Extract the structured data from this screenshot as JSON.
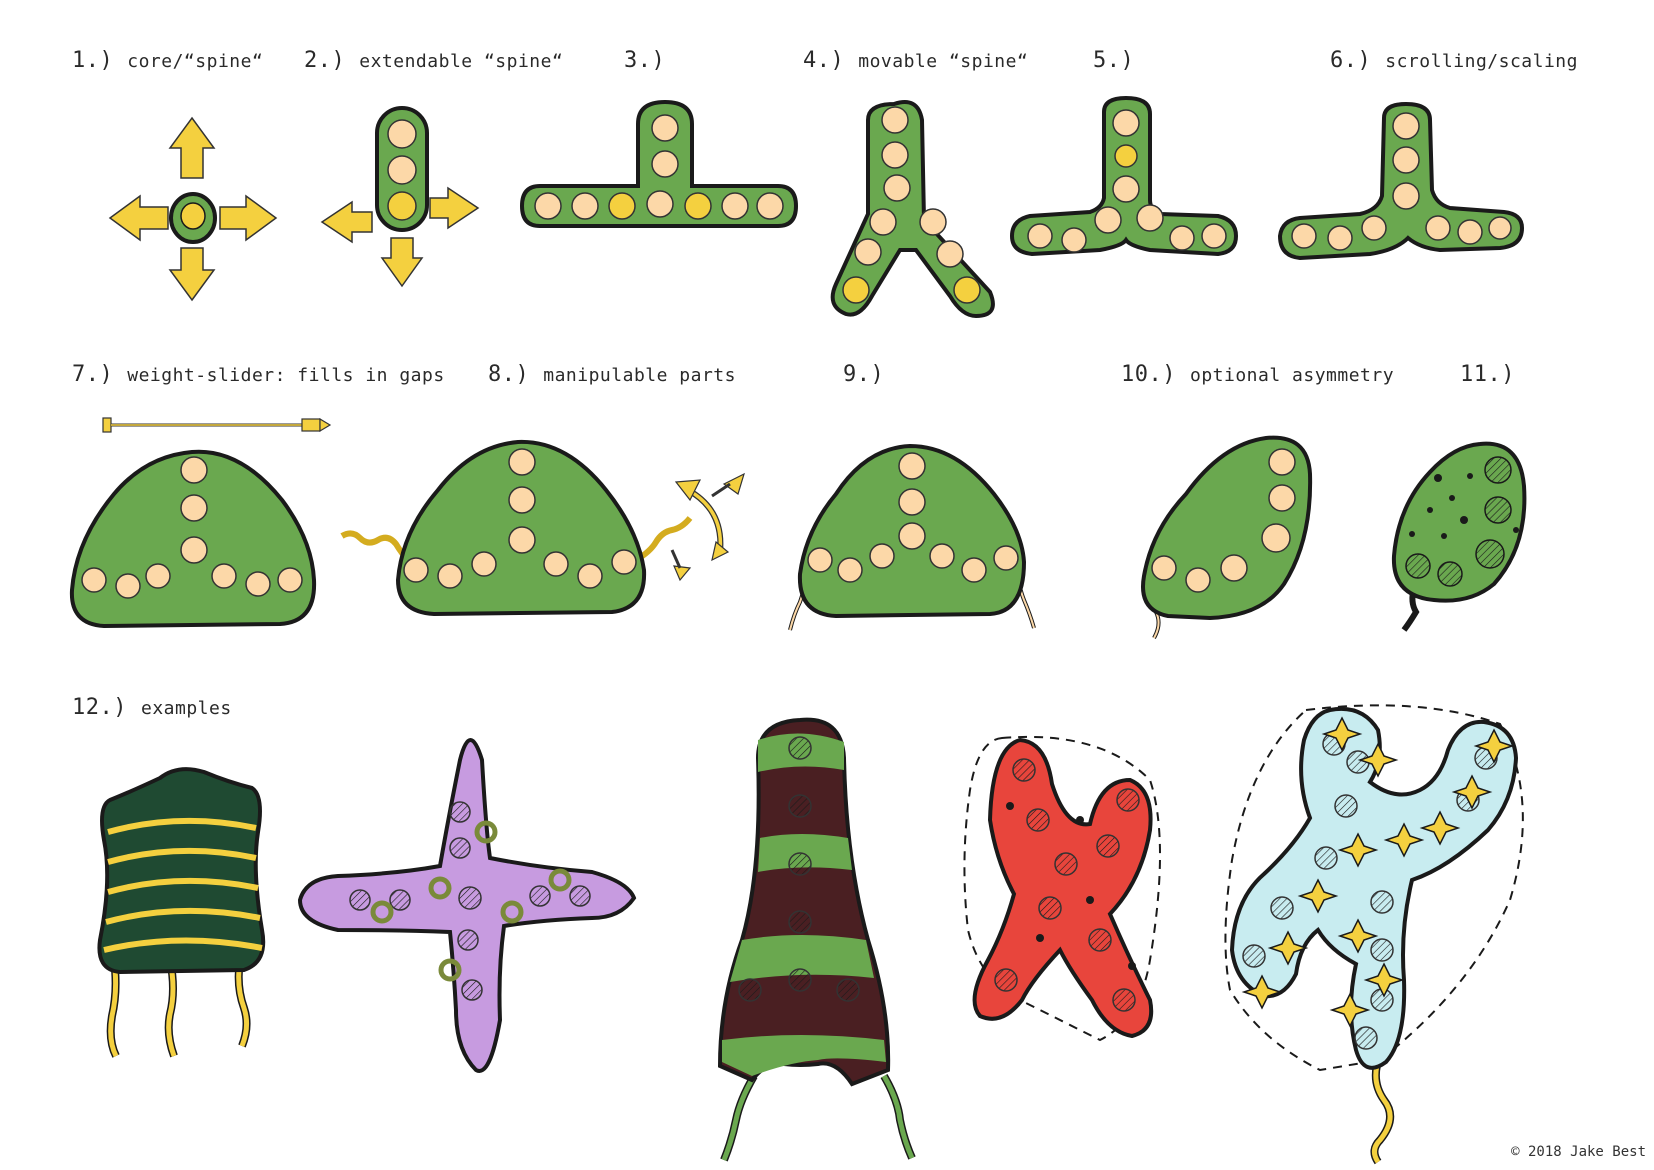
{
  "labels": {
    "l1": {
      "num": "1.)",
      "text": "core/“spine“"
    },
    "l2": {
      "num": "2.)",
      "text": "extendable “spine“"
    },
    "l3": {
      "num": "3.)",
      "text": ""
    },
    "l4": {
      "num": "4.)",
      "text": "movable “spine“"
    },
    "l5": {
      "num": "5.)",
      "text": ""
    },
    "l6": {
      "num": "6.)",
      "text": "scrolling/scaling"
    },
    "l7": {
      "num": "7.)",
      "text": "weight-slider: fills in gaps"
    },
    "l8": {
      "num": "8.)",
      "text": "manipulable parts"
    },
    "l9": {
      "num": "9.)",
      "text": ""
    },
    "l10": {
      "num": "10.)",
      "text": "optional asymmetry"
    },
    "l11": {
      "num": "11.)",
      "text": ""
    },
    "l12": {
      "num": "12.)",
      "text": "examples"
    }
  },
  "copyright": "© 2018 Jake Best",
  "colors": {
    "green": "#6aa84f",
    "green_dark": "#4f8a35",
    "yellow": "#f4d03f",
    "peach": "#fcd8a8",
    "outline": "#1a1a1a",
    "purple": "#c79be0",
    "olive": "#7a8a3a",
    "red": "#e8453c",
    "dark_green": "#1f4a32",
    "maroon": "#4a1f22",
    "light_blue": "#c8ecf0"
  }
}
